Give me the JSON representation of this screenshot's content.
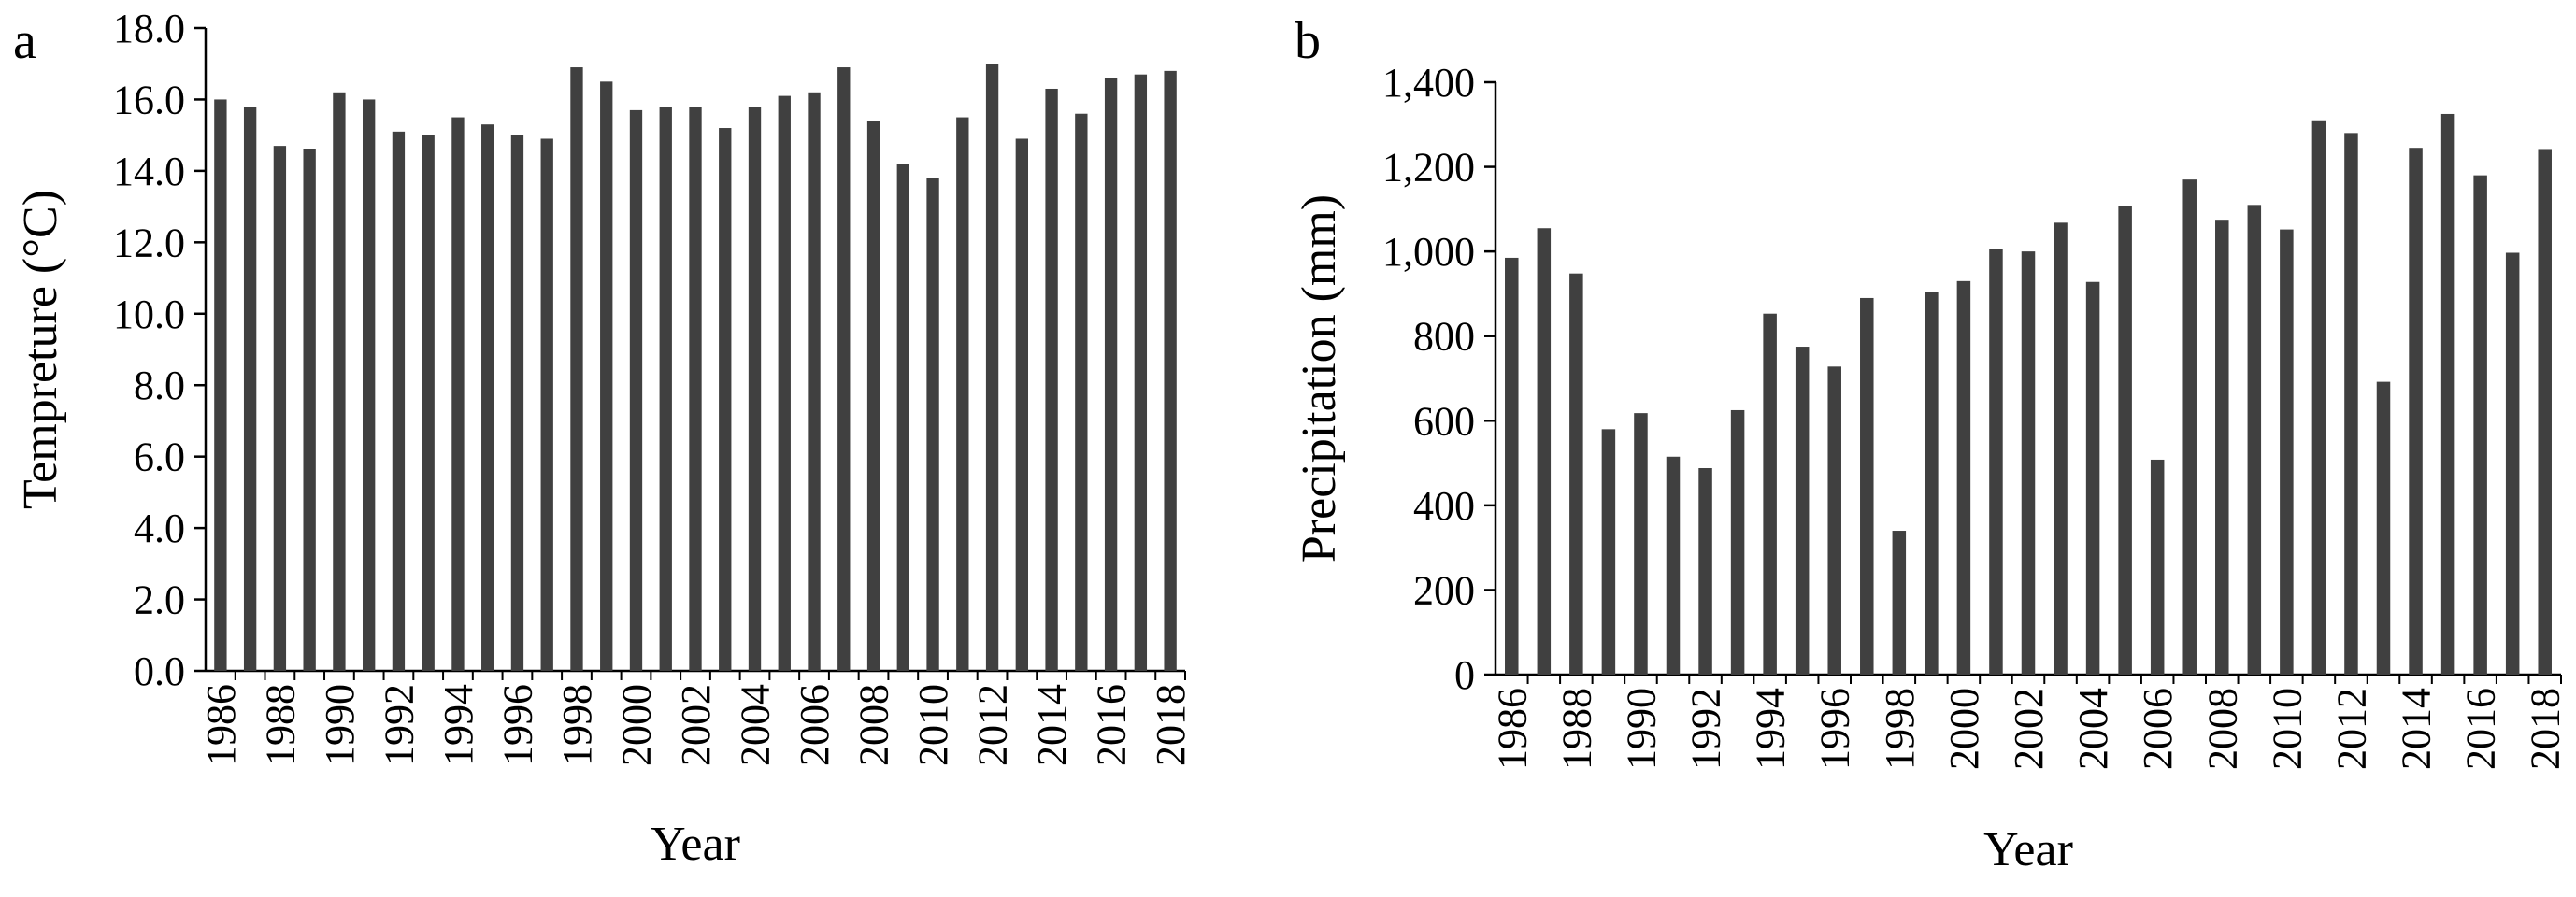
{
  "chart_data": [
    {
      "type": "bar",
      "panel_label": "a",
      "title": "",
      "xlabel": "Year",
      "ylabel": "Tempreture (°C)",
      "ylim": [
        0,
        18
      ],
      "ytick_step": 2,
      "ytick_decimals": 1,
      "ytick_thousands_sep": false,
      "grid": false,
      "legend": "none",
      "bar_color": "#404040",
      "categories": [
        "1986",
        "1987",
        "1988",
        "1989",
        "1990",
        "1991",
        "1992",
        "1993",
        "1994",
        "1995",
        "1996",
        "1997",
        "1998",
        "1999",
        "2000",
        "2001",
        "2002",
        "2003",
        "2004",
        "2005",
        "2006",
        "2007",
        "2008",
        "2009",
        "2010",
        "2011",
        "2012",
        "2013",
        "2014",
        "2015",
        "2016",
        "2017",
        "2018"
      ],
      "tick_labels": [
        "1986",
        "",
        "1988",
        "",
        "1990",
        "",
        "1992",
        "",
        "1994",
        "",
        "1996",
        "",
        "1998",
        "",
        "2000",
        "",
        "2002",
        "",
        "2004",
        "",
        "2006",
        "",
        "2008",
        "",
        "2010",
        "",
        "2012",
        "",
        "2014",
        "",
        "2016",
        "",
        "2018"
      ],
      "values": [
        16.0,
        15.8,
        14.7,
        14.6,
        16.2,
        16.0,
        15.1,
        15.0,
        15.5,
        15.3,
        15.0,
        14.9,
        16.9,
        16.5,
        15.7,
        15.8,
        15.8,
        15.2,
        15.8,
        16.1,
        16.2,
        16.9,
        15.4,
        14.2,
        13.8,
        15.5,
        17.0,
        14.9,
        16.3,
        15.6,
        16.6,
        16.7,
        16.8
      ]
    },
    {
      "type": "bar",
      "panel_label": "b",
      "title": "",
      "xlabel": "Year",
      "ylabel": "Precipitation (mm)",
      "ylim": [
        0,
        1400
      ],
      "ytick_step": 200,
      "ytick_decimals": 0,
      "ytick_thousands_sep": true,
      "grid": false,
      "legend": "none",
      "bar_color": "#404040",
      "categories": [
        "1986",
        "1987",
        "1988",
        "1989",
        "1990",
        "1991",
        "1992",
        "1993",
        "1994",
        "1995",
        "1996",
        "1997",
        "1998",
        "1999",
        "2000",
        "2001",
        "2002",
        "2003",
        "2004",
        "2005",
        "2006",
        "2007",
        "2008",
        "2009",
        "2010",
        "2011",
        "2012",
        "2013",
        "2014",
        "2015",
        "2016",
        "2017",
        "2018"
      ],
      "tick_labels": [
        "1986",
        "",
        "1988",
        "",
        "1990",
        "",
        "1992",
        "",
        "1994",
        "",
        "1996",
        "",
        "1998",
        "",
        "2000",
        "",
        "2002",
        "",
        "2004",
        "",
        "2006",
        "",
        "2008",
        "",
        "2010",
        "",
        "2012",
        "",
        "2014",
        "",
        "2016",
        "",
        "2018"
      ],
      "values": [
        985,
        1055,
        948,
        580,
        618,
        515,
        488,
        625,
        853,
        775,
        728,
        890,
        340,
        905,
        930,
        1005,
        1000,
        1068,
        928,
        1108,
        508,
        1170,
        1075,
        1110,
        1052,
        1310,
        1280,
        692,
        1245,
        1325,
        1180,
        997,
        1240
      ]
    }
  ]
}
